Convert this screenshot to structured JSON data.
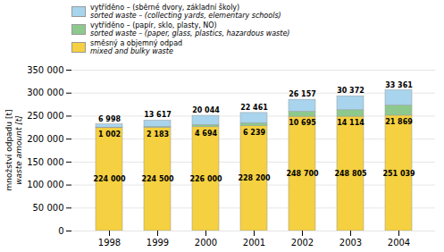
{
  "chart_data": {
    "type": "bar",
    "stacked": true,
    "data_labels": true,
    "grid": true,
    "legend": "top",
    "ylabel": "množství odpadu [t]\nwaste amount [t]",
    "categories": [
      "1998",
      "1999",
      "2000",
      "2001",
      "2002",
      "2003",
      "2004"
    ],
    "series": [
      {
        "name": "směsný a objemný odpad\nmixed and bulky waste",
        "color": "#f5d040",
        "values": [
          224000,
          224500,
          226000,
          228200,
          248700,
          248805,
          251039
        ],
        "value_labels": [
          "224 000",
          "224 500",
          "226 000",
          "228 200",
          "248 700",
          "248 805",
          "251 039"
        ]
      },
      {
        "name": "vytříděno – (papír, sklo, plasty, NO)\nsorted waste – (paper, glass, plastics, hazardous waste)",
        "color": "#8dc98d",
        "values": [
          1002,
          2183,
          4694,
          6239,
          10695,
          14114,
          21869
        ],
        "value_labels": [
          "1 002",
          "2 183",
          "4 694",
          "6 239",
          "10 695",
          "14 114",
          "21 869"
        ]
      },
      {
        "name": "vytříděno – (sběrné dvory, základní školy)\nsorted waste – (collecting yards, elementary schools)",
        "color": "#a8d4ed",
        "values": [
          6998,
          13617,
          20044,
          22461,
          26157,
          30372,
          33361
        ],
        "value_labels": [
          "6 998",
          "13 617",
          "20 044",
          "22 461",
          "26 157",
          "30 372",
          "33 361"
        ]
      }
    ],
    "ylim": [
      0,
      350000
    ],
    "yticks": [
      0,
      {
        "value": 50000,
        "label": "50 000"
      },
      {
        "value": 100000,
        "label": "100 000"
      },
      {
        "value": 150000,
        "label": "150 000"
      },
      {
        "value": 200000,
        "label": "200 000"
      },
      {
        "value": 250000,
        "label": "250 000"
      },
      {
        "value": 300000,
        "label": "300 000"
      },
      {
        "value": 350000,
        "label": "350 000"
      }
    ]
  }
}
